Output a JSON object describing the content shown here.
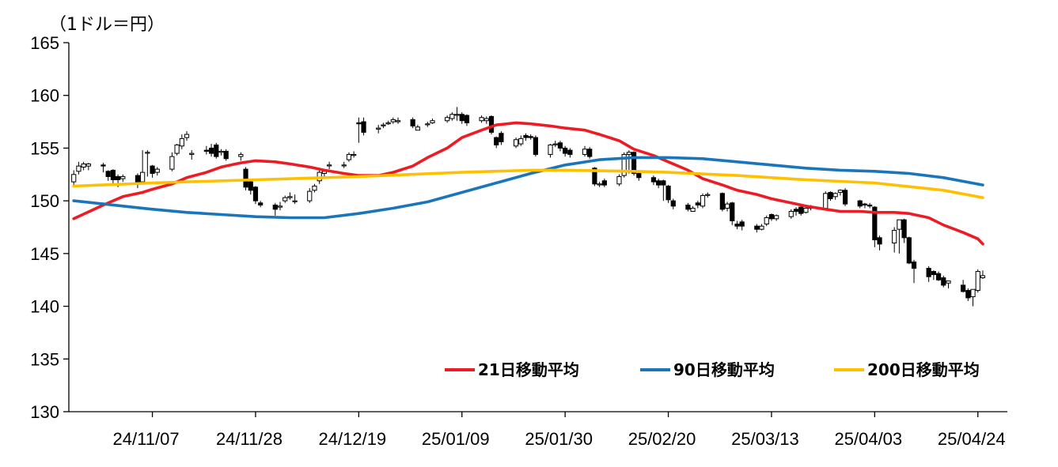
{
  "chart_data": {
    "type": "line",
    "ylabel": "（1ドル＝円）",
    "ylim": [
      130,
      165
    ],
    "yticks": [
      130,
      135,
      140,
      145,
      150,
      155,
      160,
      165
    ],
    "xlim": [
      "2024-10-21",
      "2025-04-30"
    ],
    "xticks": [
      "24/11/07",
      "24/11/28",
      "24/12/19",
      "25/01/09",
      "25/01/30",
      "25/02/20",
      "25/03/13",
      "25/04/03",
      "25/04/24"
    ],
    "xtick_dates": [
      "2024-11-07",
      "2024-11-28",
      "2024-12-19",
      "2025-01-09",
      "2025-01-30",
      "2025-02-20",
      "2025-03-13",
      "2025-04-03",
      "2025-04-24"
    ],
    "legend_position": "bottom-right",
    "candles": {
      "dates": [
        "2024-10-22",
        "2024-10-23",
        "2024-10-24",
        "2024-10-25",
        "2024-10-28",
        "2024-10-29",
        "2024-10-30",
        "2024-10-31",
        "2024-11-01",
        "2024-11-04",
        "2024-11-05",
        "2024-11-06",
        "2024-11-07",
        "2024-11-08",
        "2024-11-11",
        "2024-11-12",
        "2024-11-13",
        "2024-11-14",
        "2024-11-15",
        "2024-11-18",
        "2024-11-19",
        "2024-11-20",
        "2024-11-21",
        "2024-11-22",
        "2024-11-25",
        "2024-11-26",
        "2024-11-27",
        "2024-11-28",
        "2024-11-29",
        "2024-12-02",
        "2024-12-03",
        "2024-12-04",
        "2024-12-05",
        "2024-12-06",
        "2024-12-09",
        "2024-12-10",
        "2024-12-11",
        "2024-12-12",
        "2024-12-13",
        "2024-12-16",
        "2024-12-17",
        "2024-12-18",
        "2024-12-19",
        "2024-12-20",
        "2024-12-23",
        "2024-12-24",
        "2024-12-25",
        "2024-12-26",
        "2024-12-27",
        "2024-12-30",
        "2024-12-31",
        "2025-01-02",
        "2025-01-03",
        "2025-01-06",
        "2025-01-07",
        "2025-01-08",
        "2025-01-09",
        "2025-01-10",
        "2025-01-13",
        "2025-01-14",
        "2025-01-15",
        "2025-01-16",
        "2025-01-17",
        "2025-01-20",
        "2025-01-21",
        "2025-01-22",
        "2025-01-23",
        "2025-01-24",
        "2025-01-27",
        "2025-01-28",
        "2025-01-29",
        "2025-01-30",
        "2025-01-31",
        "2025-02-03",
        "2025-02-04",
        "2025-02-05",
        "2025-02-06",
        "2025-02-07",
        "2025-02-10",
        "2025-02-11",
        "2025-02-12",
        "2025-02-13",
        "2025-02-14",
        "2025-02-17",
        "2025-02-18",
        "2025-02-19",
        "2025-02-20",
        "2025-02-21",
        "2025-02-24",
        "2025-02-25",
        "2025-02-26",
        "2025-02-27",
        "2025-02-28",
        "2025-03-03",
        "2025-03-04",
        "2025-03-05",
        "2025-03-06",
        "2025-03-07",
        "2025-03-10",
        "2025-03-11",
        "2025-03-12",
        "2025-03-13",
        "2025-03-14",
        "2025-03-17",
        "2025-03-18",
        "2025-03-19",
        "2025-03-20",
        "2025-03-21",
        "2025-03-24",
        "2025-03-25",
        "2025-03-26",
        "2025-03-27",
        "2025-03-28",
        "2025-03-31",
        "2025-04-01",
        "2025-04-02",
        "2025-04-03",
        "2025-04-04",
        "2025-04-07",
        "2025-04-08",
        "2025-04-09",
        "2025-04-10",
        "2025-04-11",
        "2025-04-14",
        "2025-04-15",
        "2025-04-16",
        "2025-04-17",
        "2025-04-18",
        "2025-04-21",
        "2025-04-22",
        "2025-04-23",
        "2025-04-24",
        "2025-04-25"
      ],
      "open": [
        151.8,
        152.8,
        153.2,
        153.3,
        153.4,
        152.8,
        152.9,
        152.3,
        152.1,
        152.4,
        151.8,
        154.6,
        153.3,
        152.7,
        153.0,
        154.5,
        155.2,
        156.0,
        154.4,
        154.8,
        155.0,
        155.3,
        154.6,
        154.7,
        154.2,
        153.0,
        151.8,
        151.3,
        149.8,
        149.6,
        149.4,
        150.0,
        150.3,
        150.0,
        150.0,
        151.0,
        151.9,
        152.6,
        153.4,
        153.4,
        153.9,
        154.4,
        157.4,
        157.5,
        156.8,
        157.2,
        157.3,
        157.5,
        157.5,
        157.7,
        156.7,
        157.3,
        157.4,
        157.6,
        157.8,
        158.2,
        158.2,
        158.1,
        157.6,
        157.6,
        158.0,
        156.0,
        156.4,
        155.2,
        155.4,
        156.2,
        156.1,
        156.0,
        154.4,
        155.4,
        155.5,
        155.0,
        154.8,
        154.4,
        154.9,
        153.1,
        151.6,
        151.9,
        151.6,
        152.4,
        154.4,
        154.6,
        152.6,
        152.2,
        151.9,
        151.9,
        151.4,
        150.0,
        149.6,
        149.0,
        149.8,
        149.5,
        150.6,
        150.7,
        149.3,
        149.8,
        147.8,
        148.0,
        147.6,
        147.3,
        147.8,
        148.7,
        148.3,
        148.5,
        149.2,
        149.4,
        148.9,
        149.4,
        149.3,
        150.8,
        150.4,
        150.8,
        151.0,
        150.0,
        149.7,
        149.6,
        149.4,
        146.5,
        146.0,
        147.3,
        148.2,
        146.5,
        144.2,
        143.6,
        143.3,
        143.1,
        142.7,
        142.2,
        142.0,
        141.5,
        140.9,
        141.5,
        142.7
      ],
      "close": [
        152.5,
        153.3,
        153.5,
        153.5,
        153.3,
        152.3,
        152.0,
        152.0,
        152.3,
        151.6,
        152.7,
        154.6,
        152.6,
        153.0,
        154.2,
        155.3,
        155.9,
        156.3,
        154.5,
        154.7,
        154.5,
        154.2,
        154.7,
        154.0,
        154.4,
        151.3,
        151.0,
        150.0,
        149.6,
        149.2,
        149.5,
        150.3,
        150.4,
        150.0,
        150.9,
        151.4,
        152.7,
        152.8,
        153.4,
        153.4,
        154.4,
        154.4,
        157.3,
        156.5,
        156.9,
        157.2,
        157.4,
        157.7,
        157.6,
        157.1,
        157.0,
        157.3,
        157.6,
        157.9,
        158.2,
        158.2,
        157.6,
        157.4,
        157.9,
        157.8,
        156.5,
        155.3,
        155.6,
        155.8,
        155.9,
        156.0,
        156.0,
        154.4,
        155.3,
        155.4,
        155.0,
        154.5,
        154.4,
        154.9,
        154.2,
        151.6,
        151.6,
        151.5,
        152.3,
        154.4,
        154.6,
        152.6,
        152.2,
        151.8,
        151.5,
        151.5,
        150.1,
        149.5,
        149.2,
        149.3,
        149.6,
        150.5,
        150.6,
        149.2,
        149.7,
        148.1,
        147.6,
        147.6,
        147.3,
        147.6,
        148.4,
        148.3,
        148.6,
        149.0,
        149.0,
        148.8,
        149.3,
        149.3,
        150.7,
        150.2,
        150.7,
        151.0,
        149.7,
        149.5,
        149.6,
        149.5,
        146.3,
        145.9,
        147.2,
        148.2,
        146.5,
        144.1,
        143.6,
        142.8,
        143.0,
        142.5,
        142.0,
        142.4,
        141.4,
        140.8,
        141.6,
        143.3,
        142.9
      ],
      "high": [
        152.9,
        153.7,
        153.7,
        153.6,
        153.6,
        152.9,
        153.0,
        152.5,
        152.5,
        152.6,
        154.8,
        154.8,
        153.4,
        153.2,
        154.6,
        155.4,
        156.3,
        156.6,
        154.8,
        155.2,
        155.4,
        155.5,
        154.9,
        154.9,
        154.6,
        153.2,
        151.9,
        151.4,
        150.0,
        149.8,
        149.9,
        150.5,
        150.8,
        150.6,
        151.2,
        151.6,
        152.9,
        153.0,
        153.7,
        153.7,
        154.6,
        154.7,
        157.9,
        157.9,
        157.2,
        157.4,
        157.6,
        157.9,
        157.9,
        157.9,
        157.2,
        157.5,
        157.8,
        158.1,
        158.4,
        158.9,
        158.4,
        158.2,
        158.1,
        158.0,
        158.1,
        156.1,
        156.6,
        156.0,
        156.2,
        156.4,
        156.3,
        156.2,
        155.4,
        155.7,
        155.7,
        155.2,
        155.0,
        155.2,
        155.1,
        153.2,
        151.8,
        152.1,
        152.5,
        154.6,
        154.8,
        154.7,
        152.8,
        152.4,
        152.1,
        152.0,
        151.5,
        150.2,
        149.8,
        149.5,
        150.0,
        150.7,
        150.8,
        150.8,
        149.9,
        149.9,
        148.1,
        148.2,
        147.8,
        147.8,
        148.6,
        148.8,
        148.7,
        149.2,
        149.4,
        149.5,
        149.4,
        149.6,
        150.9,
        150.9,
        150.8,
        151.1,
        151.2,
        150.1,
        149.8,
        149.8,
        149.5,
        146.7,
        147.5,
        147.9,
        148.3,
        146.6,
        144.4,
        143.8,
        143.4,
        143.3,
        142.9,
        142.4,
        142.5,
        141.7,
        141.0,
        143.5,
        143.4
      ],
      "low": [
        151.5,
        152.5,
        152.9,
        152.9,
        152.7,
        151.9,
        151.5,
        151.3,
        151.8,
        151.2,
        151.6,
        152.3,
        152.2,
        152.4,
        152.8,
        154.3,
        154.9,
        155.7,
        153.9,
        154.4,
        154.2,
        154.0,
        154.3,
        153.8,
        153.8,
        151.0,
        150.6,
        149.7,
        149.4,
        148.6,
        149.1,
        149.8,
        150.1,
        149.7,
        149.8,
        150.8,
        151.6,
        152.3,
        153.0,
        153.1,
        153.7,
        154.1,
        155.5,
        156.2,
        156.4,
        156.9,
        157.2,
        157.3,
        157.3,
        156.9,
        156.7,
        157.0,
        157.3,
        157.4,
        157.6,
        157.6,
        157.3,
        157.1,
        157.4,
        157.3,
        156.3,
        155.0,
        155.3,
        155.0,
        155.2,
        155.7,
        155.8,
        154.2,
        154.1,
        155.1,
        154.7,
        154.2,
        154.1,
        154.2,
        154.0,
        151.4,
        151.3,
        151.3,
        151.4,
        152.2,
        152.6,
        152.4,
        151.9,
        151.5,
        151.2,
        150.0,
        149.8,
        149.2,
        149.0,
        149.0,
        149.3,
        149.3,
        150.3,
        149.0,
        149.0,
        147.7,
        147.3,
        147.2,
        147.0,
        147.2,
        147.6,
        148.1,
        148.1,
        148.3,
        148.6,
        148.6,
        148.8,
        149.1,
        149.1,
        150.0,
        150.1,
        150.5,
        149.5,
        149.3,
        149.3,
        149.3,
        145.6,
        145.3,
        145.1,
        145.0,
        146.0,
        144.0,
        142.2,
        142.3,
        142.5,
        142.4,
        141.8,
        141.7,
        141.3,
        140.5,
        140.0,
        141.3,
        142.6
      ]
    },
    "series": [
      {
        "name": "21日移動平均",
        "color": "#ED1C24",
        "points": [
          [
            "2024-10-22",
            148.3
          ],
          [
            "2024-10-28",
            149.6
          ],
          [
            "2024-11-01",
            150.4
          ],
          [
            "2024-11-05",
            150.8
          ],
          [
            "2024-11-07",
            151.1
          ],
          [
            "2024-11-11",
            151.6
          ],
          [
            "2024-11-14",
            152.2
          ],
          [
            "2024-11-18",
            152.7
          ],
          [
            "2024-11-21",
            153.2
          ],
          [
            "2024-11-25",
            153.6
          ],
          [
            "2024-11-28",
            153.8
          ],
          [
            "2024-12-02",
            153.7
          ],
          [
            "2024-12-05",
            153.5
          ],
          [
            "2024-12-09",
            153.2
          ],
          [
            "2024-12-12",
            152.9
          ],
          [
            "2024-12-16",
            152.6
          ],
          [
            "2024-12-19",
            152.4
          ],
          [
            "2024-12-23",
            152.4
          ],
          [
            "2024-12-26",
            152.7
          ],
          [
            "2024-12-30",
            153.3
          ],
          [
            "2025-01-02",
            154.1
          ],
          [
            "2025-01-06",
            155.0
          ],
          [
            "2025-01-09",
            156.0
          ],
          [
            "2025-01-13",
            156.7
          ],
          [
            "2025-01-16",
            157.2
          ],
          [
            "2025-01-20",
            157.4
          ],
          [
            "2025-01-23",
            157.3
          ],
          [
            "2025-01-27",
            157.1
          ],
          [
            "2025-01-30",
            156.9
          ],
          [
            "2025-02-03",
            156.7
          ],
          [
            "2025-02-06",
            156.3
          ],
          [
            "2025-02-10",
            155.7
          ],
          [
            "2025-02-13",
            154.9
          ],
          [
            "2025-02-17",
            154.3
          ],
          [
            "2025-02-20",
            153.7
          ],
          [
            "2025-02-24",
            152.9
          ],
          [
            "2025-02-27",
            152.1
          ],
          [
            "2025-03-03",
            151.5
          ],
          [
            "2025-03-06",
            151.0
          ],
          [
            "2025-03-10",
            150.6
          ],
          [
            "2025-03-13",
            150.2
          ],
          [
            "2025-03-17",
            149.8
          ],
          [
            "2025-03-20",
            149.5
          ],
          [
            "2025-03-24",
            149.2
          ],
          [
            "2025-03-27",
            149.0
          ],
          [
            "2025-03-31",
            149.0
          ],
          [
            "2025-04-03",
            148.9
          ],
          [
            "2025-04-07",
            148.9
          ],
          [
            "2025-04-10",
            148.8
          ],
          [
            "2025-04-14",
            148.4
          ],
          [
            "2025-04-17",
            147.7
          ],
          [
            "2025-04-21",
            147.0
          ],
          [
            "2025-04-24",
            146.4
          ],
          [
            "2025-04-25",
            145.9
          ]
        ]
      },
      {
        "name": "90日移動平均",
        "color": "#1B75BB",
        "points": [
          [
            "2024-10-22",
            150.0
          ],
          [
            "2024-10-28",
            149.7
          ],
          [
            "2024-11-01",
            149.5
          ],
          [
            "2024-11-07",
            149.2
          ],
          [
            "2024-11-14",
            148.9
          ],
          [
            "2024-11-21",
            148.7
          ],
          [
            "2024-11-28",
            148.5
          ],
          [
            "2024-12-05",
            148.4
          ],
          [
            "2024-12-12",
            148.4
          ],
          [
            "2024-12-19",
            148.8
          ],
          [
            "2024-12-26",
            149.3
          ],
          [
            "2025-01-02",
            149.9
          ],
          [
            "2025-01-09",
            150.8
          ],
          [
            "2025-01-16",
            151.7
          ],
          [
            "2025-01-23",
            152.6
          ],
          [
            "2025-01-30",
            153.4
          ],
          [
            "2025-02-06",
            153.9
          ],
          [
            "2025-02-13",
            154.1
          ],
          [
            "2025-02-20",
            154.1
          ],
          [
            "2025-02-27",
            154.0
          ],
          [
            "2025-03-06",
            153.7
          ],
          [
            "2025-03-13",
            153.4
          ],
          [
            "2025-03-20",
            153.1
          ],
          [
            "2025-03-27",
            152.9
          ],
          [
            "2025-04-03",
            152.8
          ],
          [
            "2025-04-10",
            152.6
          ],
          [
            "2025-04-17",
            152.2
          ],
          [
            "2025-04-25",
            151.5
          ]
        ]
      },
      {
        "name": "200日移動平均",
        "color": "#FFC000",
        "points": [
          [
            "2024-10-22",
            151.4
          ],
          [
            "2024-11-07",
            151.7
          ],
          [
            "2024-11-28",
            152.0
          ],
          [
            "2024-12-19",
            152.3
          ],
          [
            "2025-01-09",
            152.7
          ],
          [
            "2025-01-23",
            152.9
          ],
          [
            "2025-01-30",
            152.9
          ],
          [
            "2025-02-13",
            152.8
          ],
          [
            "2025-02-20",
            152.7
          ],
          [
            "2025-03-06",
            152.4
          ],
          [
            "2025-03-20",
            152.0
          ],
          [
            "2025-04-03",
            151.7
          ],
          [
            "2025-04-17",
            151.0
          ],
          [
            "2025-04-25",
            150.3
          ]
        ]
      }
    ]
  }
}
